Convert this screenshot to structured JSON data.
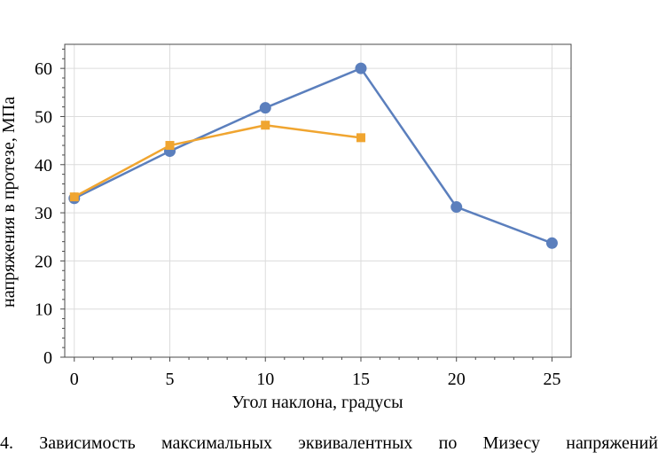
{
  "chart_data": {
    "type": "line",
    "x": [
      0,
      5,
      10,
      15,
      20,
      25
    ],
    "xlabel": "Угол наклона, градусы",
    "ylabel": "напряжения в протезе, МПа",
    "xlim": [
      -0.5,
      26
    ],
    "ylim": [
      0,
      65
    ],
    "xticks": [
      "0",
      "5",
      "10",
      "15",
      "20",
      "25"
    ],
    "yticks": [
      "0",
      "10",
      "20",
      "30",
      "40",
      "50",
      "60"
    ],
    "grid": true,
    "series": [
      {
        "x": [
          0,
          5,
          10,
          15,
          20,
          25
        ],
        "values": [
          33.0,
          42.8,
          51.8,
          60.0,
          31.2,
          23.7
        ],
        "color": "#5b7fbd",
        "marker": "circle"
      },
      {
        "x": [
          0,
          5,
          10,
          15
        ],
        "values": [
          33.3,
          44.0,
          48.2,
          45.6
        ],
        "color": "#f0a530",
        "marker": "square"
      }
    ]
  },
  "caption": "4. Зависимость максимальных эквивалентных по Мизесу напряжений"
}
